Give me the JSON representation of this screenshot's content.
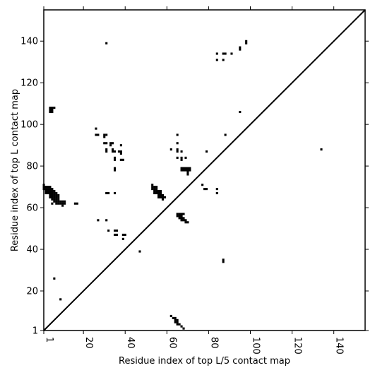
{
  "chart_data": {
    "type": "scatter",
    "title": "",
    "xlabel": "Residue index of top L/5 contact map",
    "ylabel": "Residue index of top L contact map",
    "xlim": [
      1,
      155
    ],
    "ylim": [
      1,
      155
    ],
    "x_ticks": [
      1,
      20,
      40,
      60,
      80,
      100,
      120,
      140
    ],
    "y_ticks": [
      1,
      20,
      40,
      60,
      80,
      100,
      120,
      140
    ],
    "x_tick_labels": [
      "1",
      "20",
      "40",
      "60",
      "80",
      "100",
      "120",
      "140"
    ],
    "y_tick_labels": [
      "1",
      "20",
      "40",
      "60",
      "80",
      "100",
      "120",
      "140"
    ],
    "grid": false,
    "legend": "none",
    "colors": {
      "contact": "#000000",
      "diagonal": "#000000",
      "background": "#ffffff"
    },
    "diagonal": {
      "from": [
        1,
        1
      ],
      "to": [
        155,
        155
      ]
    },
    "series": [
      {
        "points": [
          [
            31,
            139
          ],
          [
            98,
            140
          ],
          [
            98,
            139
          ],
          [
            95,
            137
          ],
          [
            95,
            136
          ],
          [
            84,
            134
          ],
          [
            87,
            134
          ],
          [
            88,
            134
          ],
          [
            91,
            134
          ],
          [
            84,
            131
          ],
          [
            87,
            131
          ],
          [
            4,
            108
          ],
          [
            5,
            108
          ],
          [
            6,
            108
          ],
          [
            4,
            107
          ],
          [
            5,
            107
          ],
          [
            4,
            106
          ],
          [
            5,
            106
          ],
          [
            95,
            106
          ],
          [
            26,
            98
          ],
          [
            26,
            95
          ],
          [
            27,
            95
          ],
          [
            30,
            95
          ],
          [
            31,
            95
          ],
          [
            30,
            94
          ],
          [
            88,
            95
          ],
          [
            65,
            95
          ],
          [
            30,
            91
          ],
          [
            31,
            91
          ],
          [
            33,
            91
          ],
          [
            34,
            91
          ],
          [
            33,
            90
          ],
          [
            38,
            90
          ],
          [
            65,
            91
          ],
          [
            31,
            88
          ],
          [
            31,
            87
          ],
          [
            34,
            88
          ],
          [
            34,
            87
          ],
          [
            35,
            87
          ],
          [
            37,
            87
          ],
          [
            38,
            87
          ],
          [
            38,
            86
          ],
          [
            62,
            88
          ],
          [
            65,
            88
          ],
          [
            65,
            87
          ],
          [
            67,
            87
          ],
          [
            79,
            87
          ],
          [
            35,
            84
          ],
          [
            35,
            83
          ],
          [
            38,
            83
          ],
          [
            39,
            83
          ],
          [
            65,
            84
          ],
          [
            67,
            84
          ],
          [
            67,
            83
          ],
          [
            69,
            84
          ],
          [
            35,
            79
          ],
          [
            35,
            78
          ],
          [
            67,
            79
          ],
          [
            68,
            79
          ],
          [
            69,
            79
          ],
          [
            70,
            79
          ],
          [
            71,
            79
          ],
          [
            67,
            78
          ],
          [
            68,
            78
          ],
          [
            69,
            78
          ],
          [
            70,
            78
          ],
          [
            71,
            78
          ],
          [
            70,
            77
          ],
          [
            70,
            76
          ],
          [
            1,
            71
          ],
          [
            1,
            70
          ],
          [
            2,
            70
          ],
          [
            3,
            70
          ],
          [
            4,
            70
          ],
          [
            1,
            69
          ],
          [
            2,
            69
          ],
          [
            3,
            69
          ],
          [
            4,
            69
          ],
          [
            5,
            69
          ],
          [
            2,
            68
          ],
          [
            3,
            68
          ],
          [
            4,
            68
          ],
          [
            5,
            68
          ],
          [
            6,
            68
          ],
          [
            2,
            67
          ],
          [
            3,
            67
          ],
          [
            4,
            67
          ],
          [
            5,
            67
          ],
          [
            6,
            67
          ],
          [
            7,
            67
          ],
          [
            4,
            66
          ],
          [
            5,
            66
          ],
          [
            6,
            66
          ],
          [
            7,
            66
          ],
          [
            8,
            66
          ],
          [
            4,
            65
          ],
          [
            5,
            65
          ],
          [
            6,
            65
          ],
          [
            7,
            65
          ],
          [
            8,
            65
          ],
          [
            5,
            64
          ],
          [
            6,
            64
          ],
          [
            7,
            64
          ],
          [
            8,
            64
          ],
          [
            6,
            63
          ],
          [
            7,
            63
          ],
          [
            8,
            63
          ],
          [
            9,
            63
          ],
          [
            10,
            63
          ],
          [
            11,
            63
          ],
          [
            5,
            62
          ],
          [
            7,
            62
          ],
          [
            8,
            62
          ],
          [
            9,
            62
          ],
          [
            10,
            62
          ],
          [
            11,
            62
          ],
          [
            16,
            62
          ],
          [
            17,
            62
          ],
          [
            10,
            61
          ],
          [
            31,
            67
          ],
          [
            32,
            67
          ],
          [
            35,
            67
          ],
          [
            53,
            71
          ],
          [
            53,
            70
          ],
          [
            54,
            70
          ],
          [
            55,
            70
          ],
          [
            53,
            69
          ],
          [
            54,
            69
          ],
          [
            55,
            69
          ],
          [
            54,
            68
          ],
          [
            55,
            68
          ],
          [
            56,
            68
          ],
          [
            57,
            68
          ],
          [
            54,
            67
          ],
          [
            55,
            67
          ],
          [
            56,
            67
          ],
          [
            57,
            67
          ],
          [
            56,
            66
          ],
          [
            57,
            66
          ],
          [
            58,
            66
          ],
          [
            56,
            65
          ],
          [
            57,
            65
          ],
          [
            58,
            65
          ],
          [
            59,
            65
          ],
          [
            58,
            64
          ],
          [
            77,
            71
          ],
          [
            78,
            69
          ],
          [
            79,
            69
          ],
          [
            84,
            69
          ],
          [
            84,
            67
          ],
          [
            65,
            57
          ],
          [
            66,
            57
          ],
          [
            67,
            57
          ],
          [
            68,
            57
          ],
          [
            65,
            56
          ],
          [
            66,
            56
          ],
          [
            67,
            56
          ],
          [
            66,
            55
          ],
          [
            67,
            55
          ],
          [
            68,
            55
          ],
          [
            67,
            54
          ],
          [
            68,
            54
          ],
          [
            69,
            54
          ],
          [
            69,
            53
          ],
          [
            70,
            53
          ],
          [
            27,
            54
          ],
          [
            31,
            54
          ],
          [
            32,
            49
          ],
          [
            35,
            49
          ],
          [
            36,
            49
          ],
          [
            35,
            47
          ],
          [
            36,
            47
          ],
          [
            39,
            47
          ],
          [
            40,
            47
          ],
          [
            39,
            45
          ],
          [
            47,
            39
          ],
          [
            6,
            26
          ],
          [
            9,
            16
          ],
          [
            87,
            35
          ],
          [
            87,
            34
          ],
          [
            62,
            8
          ],
          [
            63,
            7
          ],
          [
            64,
            7
          ],
          [
            64,
            6
          ],
          [
            65,
            6
          ],
          [
            64,
            5
          ],
          [
            65,
            5
          ],
          [
            65,
            4
          ],
          [
            66,
            4
          ],
          [
            67,
            3
          ],
          [
            68,
            2
          ],
          [
            134,
            88
          ]
        ]
      }
    ]
  }
}
